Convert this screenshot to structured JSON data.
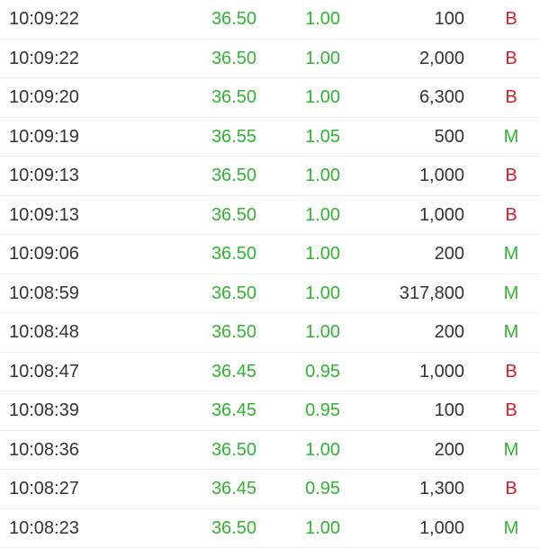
{
  "colors": {
    "up": "#2fb52f",
    "buy": "#d4202c",
    "mid": "#2fb52f"
  },
  "trades": [
    {
      "time": "10:09:22",
      "price": "36.50",
      "change": "1.00",
      "volume": "100",
      "side": "B"
    },
    {
      "time": "10:09:22",
      "price": "36.50",
      "change": "1.00",
      "volume": "2,000",
      "side": "B"
    },
    {
      "time": "10:09:20",
      "price": "36.50",
      "change": "1.00",
      "volume": "6,300",
      "side": "B"
    },
    {
      "time": "10:09:19",
      "price": "36.55",
      "change": "1.05",
      "volume": "500",
      "side": "M"
    },
    {
      "time": "10:09:13",
      "price": "36.50",
      "change": "1.00",
      "volume": "1,000",
      "side": "B"
    },
    {
      "time": "10:09:13",
      "price": "36.50",
      "change": "1.00",
      "volume": "1,000",
      "side": "B"
    },
    {
      "time": "10:09:06",
      "price": "36.50",
      "change": "1.00",
      "volume": "200",
      "side": "M"
    },
    {
      "time": "10:08:59",
      "price": "36.50",
      "change": "1.00",
      "volume": "317,800",
      "side": "M"
    },
    {
      "time": "10:08:48",
      "price": "36.50",
      "change": "1.00",
      "volume": "200",
      "side": "M"
    },
    {
      "time": "10:08:47",
      "price": "36.45",
      "change": "0.95",
      "volume": "1,000",
      "side": "B"
    },
    {
      "time": "10:08:39",
      "price": "36.45",
      "change": "0.95",
      "volume": "100",
      "side": "B"
    },
    {
      "time": "10:08:36",
      "price": "36.50",
      "change": "1.00",
      "volume": "200",
      "side": "M"
    },
    {
      "time": "10:08:27",
      "price": "36.45",
      "change": "0.95",
      "volume": "1,300",
      "side": "B"
    },
    {
      "time": "10:08:23",
      "price": "36.50",
      "change": "1.00",
      "volume": "1,000",
      "side": "M"
    }
  ]
}
